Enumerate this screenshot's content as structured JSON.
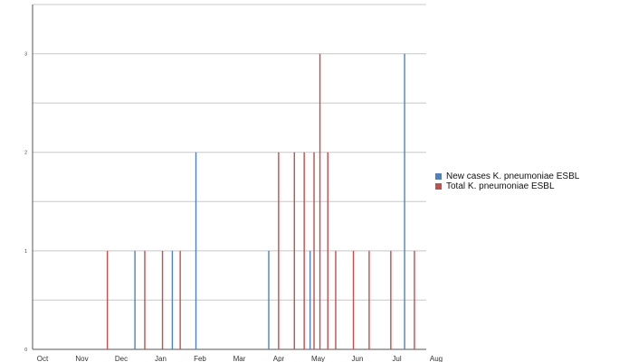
{
  "chart_data": {
    "type": "bar",
    "title": "",
    "xlabel": "",
    "ylabel": "",
    "ylim": [
      0,
      3.5
    ],
    "y_ticks": [
      0,
      1,
      2,
      3
    ],
    "x_ticks": [
      "Oct",
      "Nov",
      "Dec",
      "Jan",
      "Feb",
      "Mar",
      "Apr",
      "May",
      "Jun",
      "Jul",
      "Aug"
    ],
    "grid": true,
    "legend_position": "right",
    "series": [
      {
        "name": "New cases K. pneumoniae ESBL",
        "color": "#4f81bd",
        "bars": [
          {
            "x": 2.6,
            "value": 1
          },
          {
            "x": 3.55,
            "value": 1
          },
          {
            "x": 4.15,
            "value": 2
          },
          {
            "x": 6.0,
            "value": 1
          },
          {
            "x": 7.05,
            "value": 1
          },
          {
            "x": 9.45,
            "value": 3
          }
        ]
      },
      {
        "name": "Total K. pneumoniae ESBL",
        "color": "#c0504d",
        "bars": [
          {
            "x": 1.9,
            "value": 1
          },
          {
            "x": 2.85,
            "value": 1
          },
          {
            "x": 3.3,
            "value": 1
          },
          {
            "x": 3.75,
            "value": 1
          },
          {
            "x": 6.25,
            "value": 2
          },
          {
            "x": 6.65,
            "value": 2
          },
          {
            "x": 6.9,
            "value": 2
          },
          {
            "x": 7.15,
            "value": 2
          },
          {
            "x": 7.3,
            "value": 3
          },
          {
            "x": 7.5,
            "value": 2
          },
          {
            "x": 7.7,
            "value": 1
          },
          {
            "x": 8.15,
            "value": 1
          },
          {
            "x": 8.55,
            "value": 1
          },
          {
            "x": 9.1,
            "value": 1
          },
          {
            "x": 9.7,
            "value": 1
          }
        ]
      }
    ]
  }
}
